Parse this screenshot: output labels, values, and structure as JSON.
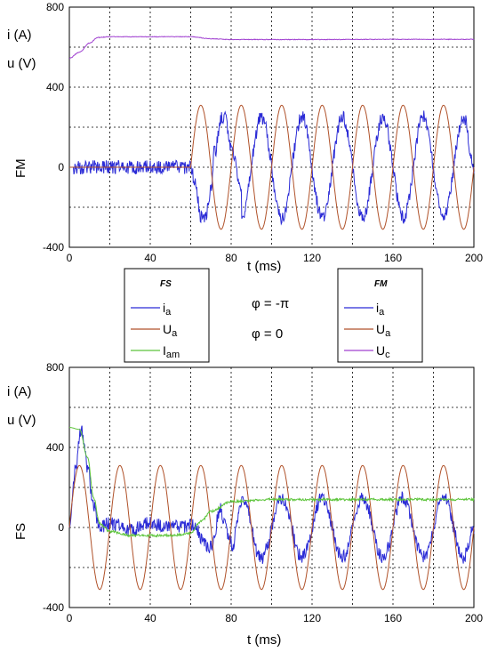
{
  "chart_data": [
    {
      "type": "line",
      "panel": "FM",
      "ylabel_side": "FM",
      "ylabel_lines": [
        "i (A)",
        "u (V)"
      ],
      "xlabel": "t (ms)",
      "xlim": [
        0,
        200
      ],
      "ylim": [
        -400,
        800
      ],
      "x_ticks": [
        "0",
        "40",
        "80",
        "120",
        "160",
        "200"
      ],
      "y_ticks": [
        "-400",
        "0",
        "400",
        "800"
      ],
      "grid": true,
      "series": [
        {
          "name": "ia",
          "color": "#2b2bd6",
          "description_fn": "noisy sine 50Hz, amplitude ~255, starts at t=60ms",
          "points": [
            [
              0,
              0
            ],
            [
              60,
              0
            ],
            [
              62,
              -80
            ],
            [
              65,
              -240
            ],
            [
              67,
              -255
            ],
            [
              70,
              -120
            ],
            [
              72,
              80
            ],
            [
              75,
              240
            ],
            [
              77,
              255
            ],
            [
              80,
              100
            ],
            [
              85,
              -250
            ],
            [
              95,
              250
            ],
            [
              105,
              -250
            ],
            [
              115,
              250
            ],
            [
              125,
              -250
            ],
            [
              135,
              250
            ],
            [
              145,
              -250
            ],
            [
              155,
              250
            ],
            [
              165,
              -250
            ],
            [
              175,
              250
            ],
            [
              185,
              -250
            ],
            [
              195,
              250
            ],
            [
              200,
              0
            ]
          ]
        },
        {
          "name": "Ua",
          "color": "#b0522a",
          "description_fn": "sine 50Hz amplitude 310 starting at t=60ms, zero before",
          "points": [
            [
              0,
              0
            ],
            [
              60,
              0
            ],
            [
              65,
              310
            ],
            [
              75,
              -310
            ],
            [
              85,
              310
            ],
            [
              95,
              -310
            ],
            [
              105,
              310
            ],
            [
              115,
              -310
            ],
            [
              125,
              310
            ],
            [
              135,
              -310
            ],
            [
              145,
              310
            ],
            [
              155,
              -310
            ],
            [
              165,
              310
            ],
            [
              175,
              -310
            ],
            [
              185,
              310
            ],
            [
              195,
              -310
            ],
            [
              200,
              0
            ]
          ]
        },
        {
          "name": "Uc",
          "color": "#a040d0",
          "points": [
            [
              0,
              545
            ],
            [
              5,
              575
            ],
            [
              10,
              620
            ],
            [
              14,
              648
            ],
            [
              20,
              652
            ],
            [
              60,
              652
            ],
            [
              70,
              642
            ],
            [
              80,
              638
            ],
            [
              120,
              638
            ],
            [
              160,
              639
            ],
            [
              200,
              639
            ]
          ]
        }
      ]
    },
    {
      "type": "line",
      "panel": "FS",
      "ylabel_side": "FS",
      "ylabel_lines": [
        "i (A)",
        "u (V)"
      ],
      "xlabel": "t (ms)",
      "xlim": [
        0,
        200
      ],
      "ylim": [
        -400,
        800
      ],
      "x_ticks": [
        "0",
        "40",
        "80",
        "120",
        "160",
        "200"
      ],
      "y_ticks": [
        "-400",
        "0",
        "400",
        "800"
      ],
      "grid": true,
      "series": [
        {
          "name": "ia",
          "color": "#2b2bd6",
          "points": [
            [
              0,
              0
            ],
            [
              3,
              300
            ],
            [
              6,
              500
            ],
            [
              9,
              300
            ],
            [
              12,
              100
            ],
            [
              15,
              0
            ],
            [
              20,
              20
            ],
            [
              30,
              -10
            ],
            [
              40,
              20
            ],
            [
              50,
              0
            ],
            [
              60,
              10
            ],
            [
              70,
              -100
            ],
            [
              75,
              60
            ],
            [
              80,
              -120
            ],
            [
              85,
              160
            ],
            [
              95,
              -150
            ],
            [
              105,
              150
            ],
            [
              115,
              -150
            ],
            [
              125,
              150
            ],
            [
              135,
              -150
            ],
            [
              145,
              150
            ],
            [
              155,
              -150
            ],
            [
              165,
              150
            ],
            [
              175,
              -150
            ],
            [
              185,
              150
            ],
            [
              195,
              -150
            ],
            [
              200,
              0
            ]
          ]
        },
        {
          "name": "Ua",
          "color": "#b0522a",
          "points": [
            [
              0,
              0
            ],
            [
              5,
              310
            ],
            [
              15,
              -310
            ],
            [
              25,
              310
            ],
            [
              35,
              -310
            ],
            [
              45,
              310
            ],
            [
              55,
              -310
            ],
            [
              65,
              310
            ],
            [
              75,
              -310
            ],
            [
              85,
              310
            ],
            [
              95,
              -310
            ],
            [
              105,
              310
            ],
            [
              115,
              -310
            ],
            [
              125,
              310
            ],
            [
              135,
              -310
            ],
            [
              145,
              310
            ],
            [
              155,
              -310
            ],
            [
              165,
              310
            ],
            [
              175,
              -310
            ],
            [
              185,
              310
            ],
            [
              195,
              -310
            ],
            [
              200,
              0
            ]
          ]
        },
        {
          "name": "Iam",
          "color": "#5cc43a",
          "points": [
            [
              0,
              500
            ],
            [
              5,
              490
            ],
            [
              9,
              350
            ],
            [
              12,
              150
            ],
            [
              15,
              20
            ],
            [
              20,
              -20
            ],
            [
              30,
              -40
            ],
            [
              50,
              -40
            ],
            [
              60,
              -30
            ],
            [
              65,
              30
            ],
            [
              70,
              80
            ],
            [
              80,
              130
            ],
            [
              100,
              140
            ],
            [
              140,
              140
            ],
            [
              200,
              140
            ]
          ]
        }
      ]
    }
  ],
  "legends": {
    "fs": {
      "title": "FS",
      "items": [
        {
          "base": "i",
          "sub": "a",
          "color": "#2b2bd6"
        },
        {
          "base": "U",
          "sub": "a",
          "color": "#b0522a"
        },
        {
          "base": "I",
          "sub": "am",
          "color": "#5cc43a"
        }
      ]
    },
    "fm": {
      "title": "FM",
      "items": [
        {
          "base": "i",
          "sub": "a",
          "color": "#2b2bd6"
        },
        {
          "base": "U",
          "sub": "a",
          "color": "#b0522a"
        },
        {
          "base": "U",
          "sub": "c",
          "color": "#a040d0"
        }
      ]
    }
  },
  "annotations": {
    "phi_fm": "φ = -π",
    "phi_fs": "φ = 0"
  }
}
